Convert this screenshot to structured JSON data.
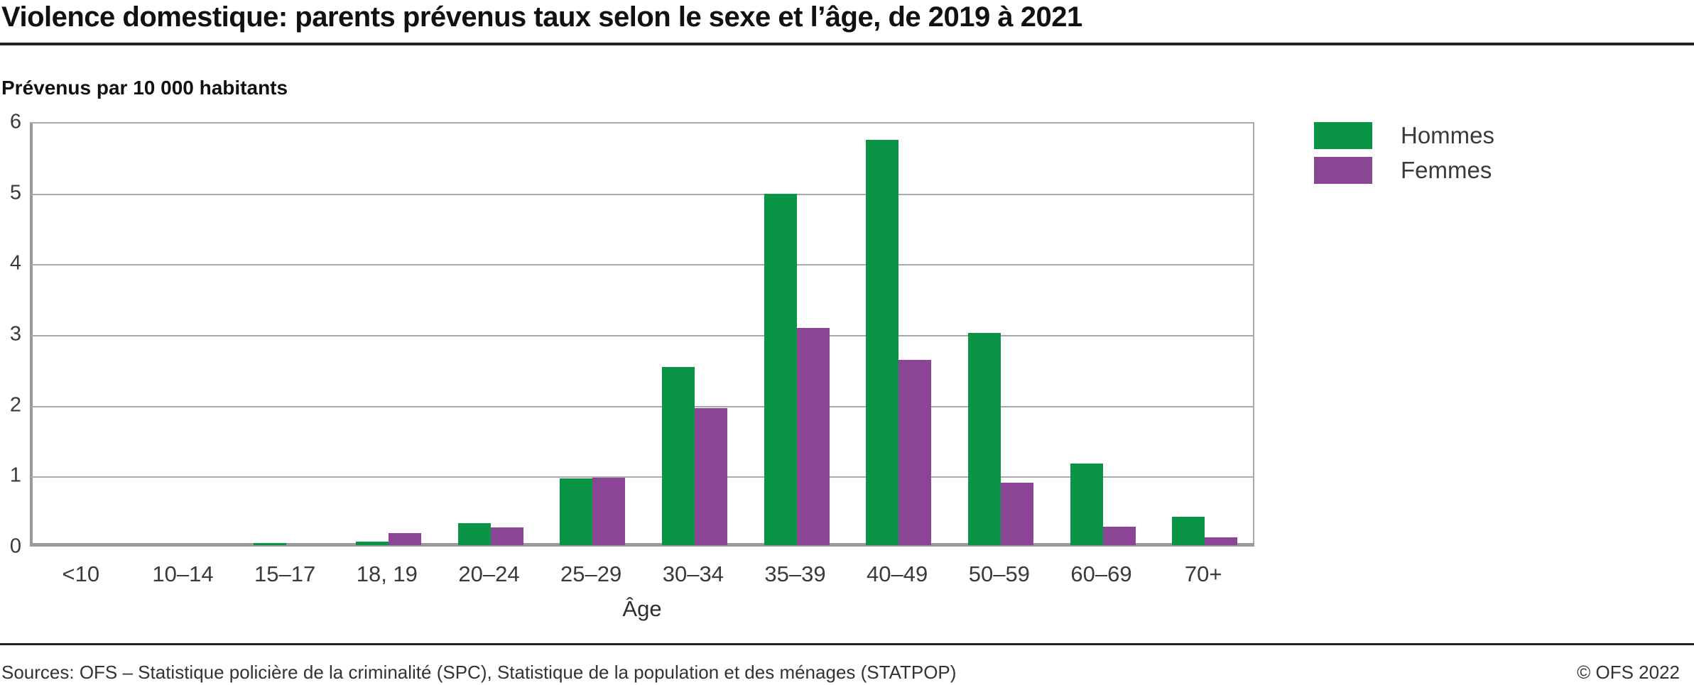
{
  "header": {
    "title": "Violence domestique: parents prévenus taux selon le sexe et l’âge, de 2019 à 2021",
    "subtitle": "Prévenus par 10 000 habitants"
  },
  "footer": {
    "sources": "Sources: OFS – Statistique policière de la criminalité (SPC), Statistique de la population et des ménages (STATPOP)",
    "copyright": "© OFS 2022"
  },
  "chart_data": {
    "type": "bar",
    "title": "Violence domestique: parents prévenus taux selon le sexe et l’âge, de 2019 à 2021",
    "subtitle": "Prévenus par 10 000 habitants",
    "categories": [
      "<10",
      "10–14",
      "15–17",
      "18, 19",
      "20–24",
      "25–29",
      "30–34",
      "35–39",
      "40–49",
      "50–59",
      "60–69",
      "70+"
    ],
    "series": [
      {
        "name": "Hommes",
        "color": "#0a9446",
        "values": [
          0,
          0,
          0.03,
          0.05,
          0.31,
          0.94,
          2.52,
          4.97,
          5.73,
          3.0,
          1.15,
          0.4
        ]
      },
      {
        "name": "Femmes",
        "color": "#8a4694",
        "values": [
          0,
          0,
          0,
          0.17,
          0.25,
          0.95,
          1.94,
          3.07,
          2.62,
          0.88,
          0.26,
          0.11
        ]
      }
    ],
    "xlabel": "Âge",
    "ylabel": "Prévenus par 10 000 habitants",
    "ylim": [
      0,
      6
    ],
    "yticks": [
      0,
      1,
      2,
      3,
      4,
      5,
      6
    ],
    "grid": true,
    "legend_position": "top-right",
    "gridline_color": "#aaaaaa"
  }
}
